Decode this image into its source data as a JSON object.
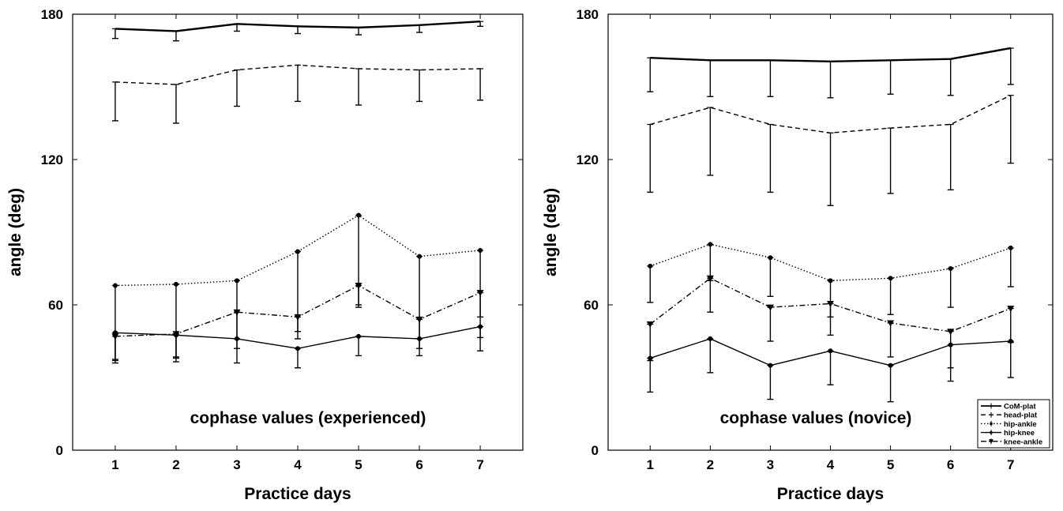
{
  "chart_data": [
    {
      "type": "line",
      "title": "",
      "annotation": "cophase values (experienced)",
      "xlabel": "Practice days",
      "ylabel": "angle (deg)",
      "x": [
        1,
        2,
        3,
        4,
        5,
        6,
        7
      ],
      "xlim": [
        0.3,
        7.7
      ],
      "ylim": [
        0,
        180
      ],
      "xticks": [
        "1",
        "2",
        "3",
        "4",
        "5",
        "6",
        "7"
      ],
      "yticks": [
        "0",
        "60",
        "120",
        "180"
      ],
      "grid": false,
      "legend": null,
      "series": [
        {
          "name": "CoM-plat",
          "style": "solid-thick",
          "marker": "none",
          "values": [
            174,
            173,
            176,
            175,
            174.5,
            175.5,
            177
          ],
          "err_low": [
            4,
            4,
            3,
            3,
            3,
            3,
            2
          ],
          "err_high": [
            0,
            0,
            0,
            0,
            0,
            0,
            0
          ]
        },
        {
          "name": "head-plat",
          "style": "dashed",
          "marker": "none",
          "values": [
            152,
            151,
            157,
            159,
            157.5,
            157,
            157.5
          ],
          "err_low": [
            16,
            16,
            15,
            15,
            15,
            13,
            13
          ],
          "err_high": [
            0,
            0,
            0,
            0,
            0,
            0,
            0
          ]
        },
        {
          "name": "hip-ankle",
          "style": "dotted",
          "marker": "dot",
          "values": [
            68,
            68.5,
            70,
            82,
            97,
            80,
            82.5
          ],
          "err_low": [
            32,
            30,
            28,
            36,
            37,
            38,
            36
          ],
          "err_high": [
            0,
            0,
            0,
            0,
            0,
            0,
            0
          ]
        },
        {
          "name": "hip-knee",
          "style": "solid",
          "marker": "dot",
          "values": [
            48.5,
            47.5,
            46,
            42,
            47,
            46,
            51
          ],
          "err_low": [
            11,
            11,
            10,
            8,
            8,
            7,
            10
          ],
          "err_high": [
            0,
            0,
            0,
            0,
            0,
            0,
            0
          ]
        },
        {
          "name": "knee-ankle",
          "style": "dashdot",
          "marker": "triangle-down",
          "values": [
            47,
            48,
            57,
            55,
            68,
            54,
            65
          ],
          "err_low": [
            10,
            10,
            11,
            6,
            9,
            8,
            10
          ],
          "err_high": [
            0,
            0,
            0,
            0,
            0,
            0,
            0
          ]
        }
      ]
    },
    {
      "type": "line",
      "title": "",
      "annotation": "cophase values (novice)",
      "xlabel": "Practice days",
      "ylabel": "angle (deg)",
      "x": [
        1,
        2,
        3,
        4,
        5,
        6,
        7
      ],
      "xlim": [
        0.3,
        7.7
      ],
      "ylim": [
        0,
        180
      ],
      "xticks": [
        "1",
        "2",
        "3",
        "4",
        "5",
        "6",
        "7"
      ],
      "yticks": [
        "0",
        "60",
        "120",
        "180"
      ],
      "grid": false,
      "legend": {
        "position": "bottom-right",
        "entries": [
          {
            "name": "CoM-plat",
            "style": "solid-thick",
            "marker": "none"
          },
          {
            "name": "head-plat",
            "style": "dashed",
            "marker": "none"
          },
          {
            "name": "hip-ankle",
            "style": "dotted",
            "marker": "dot"
          },
          {
            "name": "hip-knee",
            "style": "solid",
            "marker": "dot"
          },
          {
            "name": "knee-ankle",
            "style": "dashdot",
            "marker": "triangle-down"
          }
        ]
      },
      "series": [
        {
          "name": "CoM-plat",
          "style": "solid-thick",
          "marker": "none",
          "values": [
            162,
            161,
            161,
            160.5,
            161,
            161.5,
            166
          ],
          "err_low": [
            14,
            15,
            15,
            15,
            14,
            15,
            15
          ],
          "err_high": [
            0,
            0,
            0,
            0,
            0,
            0,
            0
          ]
        },
        {
          "name": "head-plat",
          "style": "dashed",
          "marker": "none",
          "values": [
            134.5,
            141.5,
            134.5,
            131,
            133,
            134.5,
            146.5
          ],
          "err_low": [
            28,
            28,
            28,
            30,
            27,
            27,
            28
          ],
          "err_high": [
            0,
            0,
            0,
            0,
            0,
            0,
            0
          ]
        },
        {
          "name": "hip-ankle",
          "style": "dotted",
          "marker": "dot",
          "values": [
            76,
            85,
            79.5,
            70,
            71,
            75,
            83.5
          ],
          "err_low": [
            15,
            15,
            16,
            15,
            15,
            16,
            16
          ],
          "err_high": [
            0,
            0,
            0,
            0,
            0,
            0,
            0
          ]
        },
        {
          "name": "hip-knee",
          "style": "solid",
          "marker": "dot",
          "values": [
            38,
            46,
            35,
            41,
            35,
            43.5,
            45
          ],
          "err_low": [
            14,
            14,
            14,
            14,
            15,
            15,
            15
          ],
          "err_high": [
            0,
            0,
            0,
            0,
            0,
            0,
            0
          ]
        },
        {
          "name": "knee-ankle",
          "style": "dashdot",
          "marker": "triangle-down",
          "values": [
            52,
            71,
            59,
            60.5,
            52.5,
            49,
            58.5
          ],
          "err_low": [
            15,
            14,
            14,
            13,
            14,
            15,
            14
          ],
          "err_high": [
            0,
            0,
            0,
            0,
            0,
            0,
            0
          ]
        }
      ]
    }
  ]
}
